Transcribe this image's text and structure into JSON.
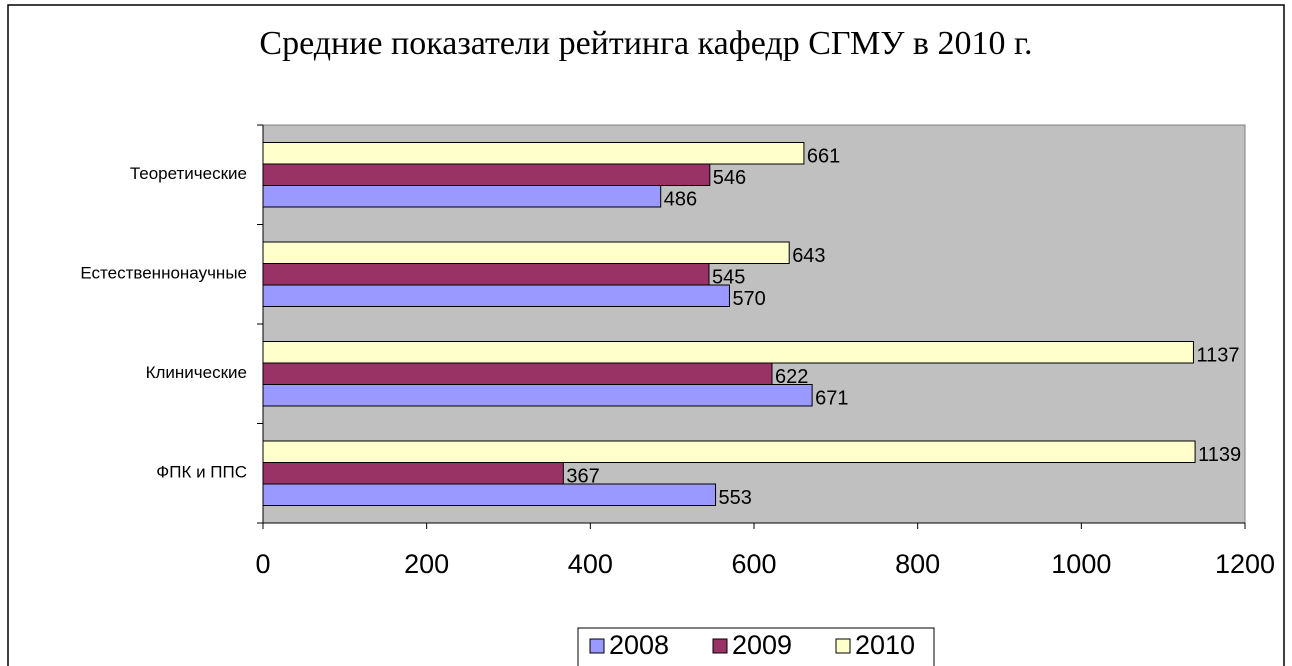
{
  "chart_data": {
    "type": "bar",
    "orientation": "horizontal",
    "title": "Средние показатели рейтинга кафедр СГМУ в 2010 г.",
    "categories": [
      "Теоретические",
      "Естественнонаучные",
      "Клинические",
      "ФПК и ППС"
    ],
    "series": [
      {
        "name": "2008",
        "color": "#9999ff",
        "values": [
          486,
          570,
          671,
          553
        ]
      },
      {
        "name": "2009",
        "color": "#993366",
        "values": [
          546,
          545,
          622,
          367
        ]
      },
      {
        "name": "2010",
        "color": "#ffffcc",
        "values": [
          661,
          643,
          1137,
          1139
        ]
      }
    ],
    "xlim": [
      0,
      1200
    ],
    "xticks": [
      0,
      200,
      400,
      600,
      800,
      1000,
      1200
    ],
    "legend": "bottom",
    "plot_background": "#c0c0c0"
  }
}
